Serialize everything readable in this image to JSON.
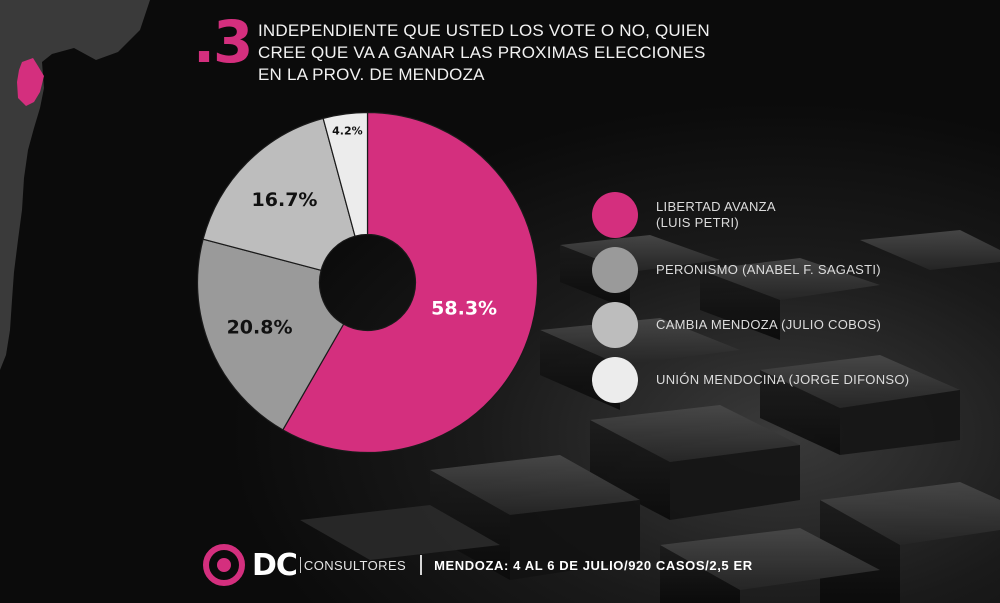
{
  "header": {
    "question_number": ".3",
    "title_lines": [
      "INDEPENDIENTE QUE USTED LOS VOTE O NO, QUIEN",
      "CREE QUE VA A GANAR LAS PROXIMAS ELECCIONES",
      "EN LA PROV. DE MENDOZA"
    ]
  },
  "colors": {
    "accent": "#d42f7e",
    "background": "#0b0b0b",
    "map": "#3a3a3a"
  },
  "chart_data": {
    "type": "pie",
    "donut": true,
    "categories": [
      "LIBERTAD AVANZA (LUIS PETRI)",
      "PERONISMO (ANABEL F. SAGASTI)",
      "CAMBIA MENDOZA (JULIO COBOS)",
      "UNIÓN MENDOCINA (JORGE DIFONSO)"
    ],
    "values": [
      58.3,
      20.8,
      16.7,
      4.2
    ],
    "value_labels": [
      "58.3%",
      "20.8%",
      "16.7%",
      "4.2%"
    ],
    "colors": [
      "#d42f7e",
      "#9a9a9a",
      "#bdbdbd",
      "#ececec"
    ],
    "legend_placement": "right"
  },
  "legend": [
    {
      "lines": [
        "LIBERTAD AVANZA",
        "(LUIS PETRI)"
      ],
      "color": "#d42f7e"
    },
    {
      "lines": [
        "PERONISMO (ANABEL F. SAGASTI)"
      ],
      "color": "#9a9a9a"
    },
    {
      "lines": [
        "CAMBIA MENDOZA (JULIO COBOS)"
      ],
      "color": "#bdbdbd"
    },
    {
      "lines": [
        "UNIÓN MENDOCINA (JORGE DIFONSO)"
      ],
      "color": "#ececec"
    }
  ],
  "footer": {
    "logo_text": "DC",
    "logo_subtext": "CONSULTORES",
    "info": "MENDOZA: 4 AL 6 DE JULIO/920 CASOS/2,5 ER"
  }
}
